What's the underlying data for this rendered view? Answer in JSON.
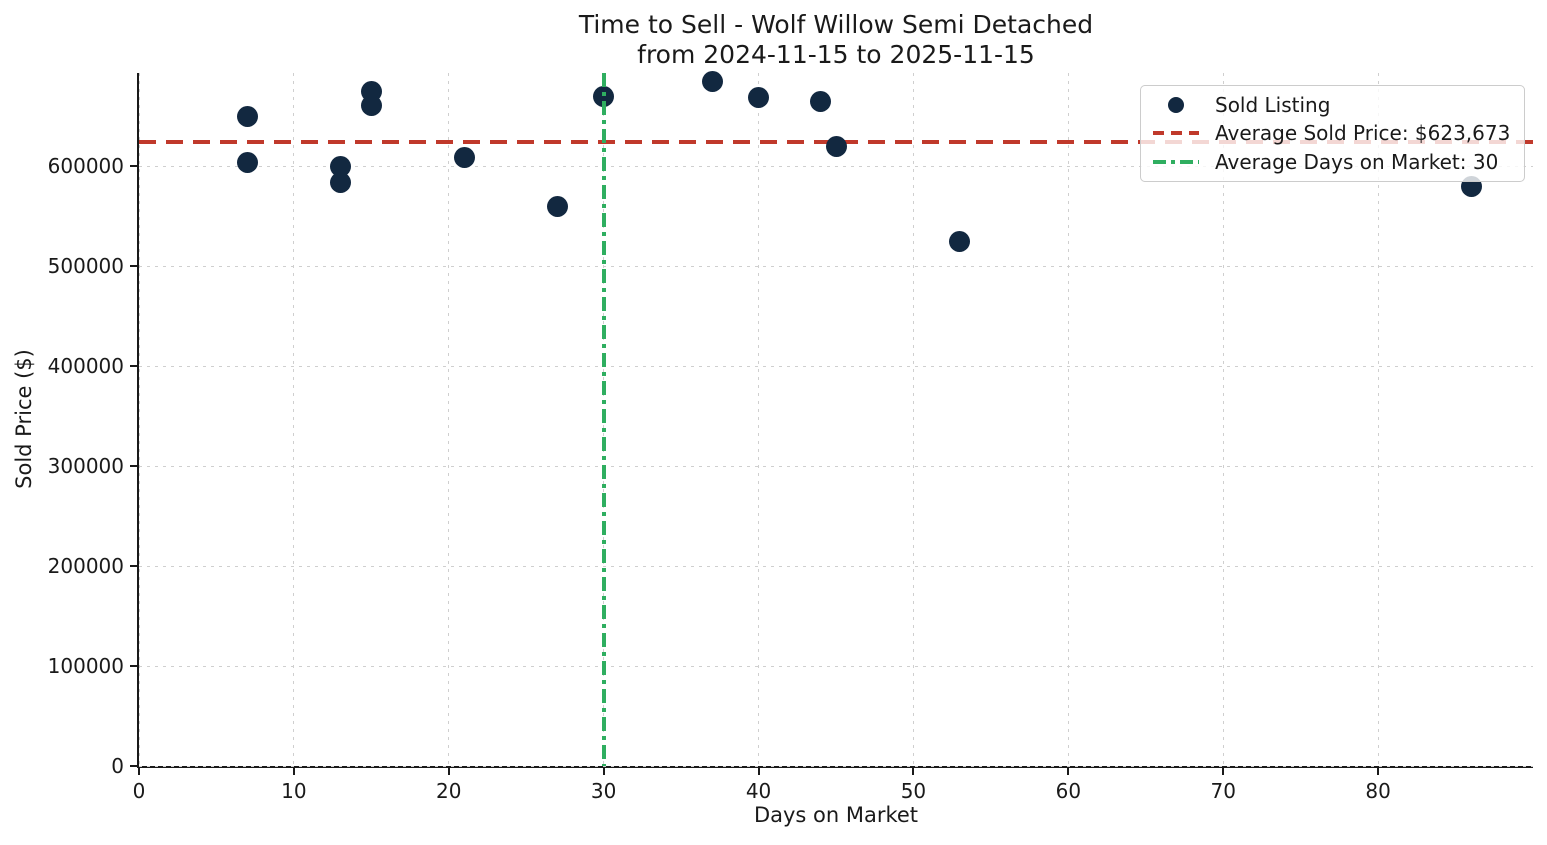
{
  "figure": {
    "title_line1": "Time to Sell - Wolf Willow Semi Detached",
    "title_line2": "from 2024-11-15 to 2025-11-15",
    "xlabel": "Days on Market",
    "ylabel": "Sold Price ($)"
  },
  "legend": {
    "position": "upper right",
    "items": [
      {
        "label": "Sold Listing",
        "marker": "dot"
      },
      {
        "label": "Average Sold Price: $623,673",
        "marker": "dashed-line"
      },
      {
        "label": "Average Days on Market: 30",
        "marker": "dashdot-line"
      }
    ]
  },
  "chart_data": {
    "type": "scatter",
    "title": "Time to Sell - Wolf Willow Semi Detached from 2024-11-15 to 2025-11-15",
    "xlabel": "Days on Market",
    "ylabel": "Sold Price ($)",
    "xlim": [
      0,
      90
    ],
    "ylim": [
      0,
      693000
    ],
    "x_ticks": [
      0,
      10,
      20,
      30,
      40,
      50,
      60,
      70,
      80
    ],
    "y_ticks": [
      0,
      100000,
      200000,
      300000,
      400000,
      500000,
      600000
    ],
    "grid": true,
    "legend_position": "upper right",
    "series": [
      {
        "name": "Sold Listing",
        "type": "scatter",
        "color": "#122840",
        "points_columns": [
          "days_on_market",
          "sold_price"
        ],
        "points": [
          [
            7,
            650000
          ],
          [
            7,
            603500
          ],
          [
            13,
            600000
          ],
          [
            13,
            583500
          ],
          [
            15,
            675000
          ],
          [
            15,
            660300
          ],
          [
            21,
            609000
          ],
          [
            27,
            560000
          ],
          [
            30,
            670000
          ],
          [
            37,
            684900
          ],
          [
            40,
            669000
          ],
          [
            44,
            665000
          ],
          [
            45,
            620000
          ],
          [
            53,
            525000
          ],
          [
            86,
            579900
          ]
        ]
      },
      {
        "name": "Average Sold Price: $623,673",
        "type": "hline",
        "value": 623673,
        "color": "#C0392B",
        "style": "dashed"
      },
      {
        "name": "Average Days on Market: 30",
        "type": "vline",
        "value": 30,
        "color": "#2FAE60",
        "style": "dashdot"
      }
    ]
  },
  "colors": {
    "point": "#122840",
    "avg_price_line": "#C0392B",
    "avg_days_line": "#2FAE60",
    "grid": "#cfcfcf",
    "axis": "#1a1a1a",
    "text": "#1a1a1a",
    "background": "#ffffff"
  }
}
